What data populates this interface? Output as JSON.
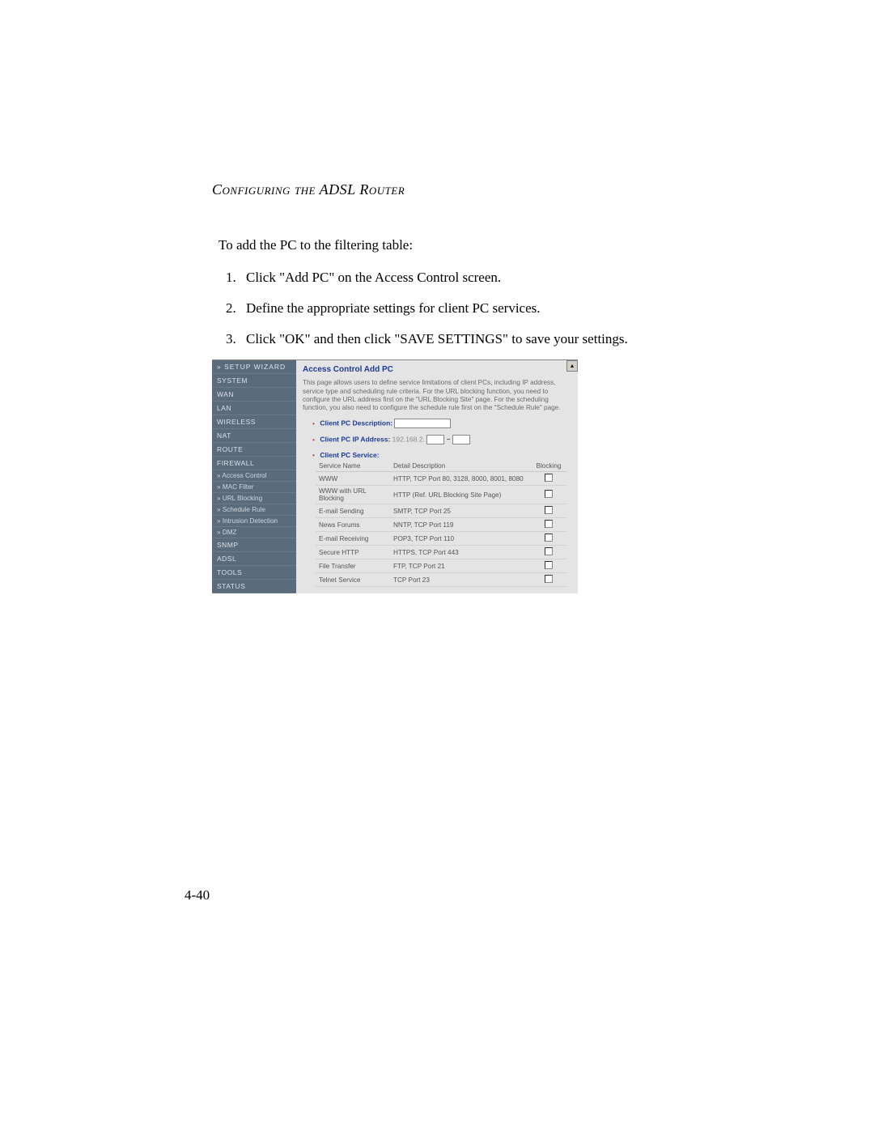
{
  "section_title": "Configuring the ADSL Router",
  "intro": "To add the PC to the filtering table:",
  "steps": [
    "Click \"Add PC\" on the Access Control screen.",
    "Define the appropriate settings for client PC services.",
    "Click \"OK\" and then click \"SAVE SETTINGS\" to save your settings."
  ],
  "page_number": "4-40",
  "router_ui": {
    "nav": {
      "setup": "» SETUP WIZARD",
      "items": [
        "SYSTEM",
        "WAN",
        "LAN",
        "WIRELESS",
        "NAT",
        "ROUTE",
        "FIREWALL"
      ],
      "firewall_sub": [
        "» Access Control",
        "» MAC Filter",
        "» URL Blocking",
        "» Schedule Rule",
        "» Intrusion Detection",
        "» DMZ"
      ],
      "items2": [
        "SNMP",
        "ADSL",
        "TOOLS",
        "STATUS"
      ]
    },
    "content": {
      "title": "Access Control Add PC",
      "description": "This page allows users to define service limitations of client PCs, including IP address, service type and scheduling rule criteria. For the URL blocking function, you need to configure the URL address first on the \"URL Blocking Site\" page. For the scheduling function, you also need to configure the schedule rule first on the \"Schedule Rule\" page.",
      "labels": {
        "desc": "Client PC Description:",
        "ip": "Client PC IP Address:",
        "ip_prefix": "192.168.2.",
        "dash": "~",
        "service": "Client PC Service:"
      },
      "table": {
        "headers": {
          "name": "Service Name",
          "detail": "Detail Description",
          "block": "Blocking"
        },
        "rows": [
          {
            "name": "WWW",
            "detail": "HTTP, TCP Port 80, 3128, 8000, 8001, 8080"
          },
          {
            "name": "WWW with URL Blocking",
            "detail": "HTTP (Ref. URL Blocking Site Page)"
          },
          {
            "name": "E-mail Sending",
            "detail": "SMTP, TCP Port 25"
          },
          {
            "name": "News Forums",
            "detail": "NNTP, TCP Port 119"
          },
          {
            "name": "E-mail Receiving",
            "detail": "POP3, TCP Port 110"
          },
          {
            "name": "Secure HTTP",
            "detail": "HTTPS, TCP Port 443"
          },
          {
            "name": "File Transfer",
            "detail": "FTP, TCP Port 21"
          },
          {
            "name": "Telnet Service",
            "detail": "TCP Port 23"
          }
        ]
      }
    }
  }
}
